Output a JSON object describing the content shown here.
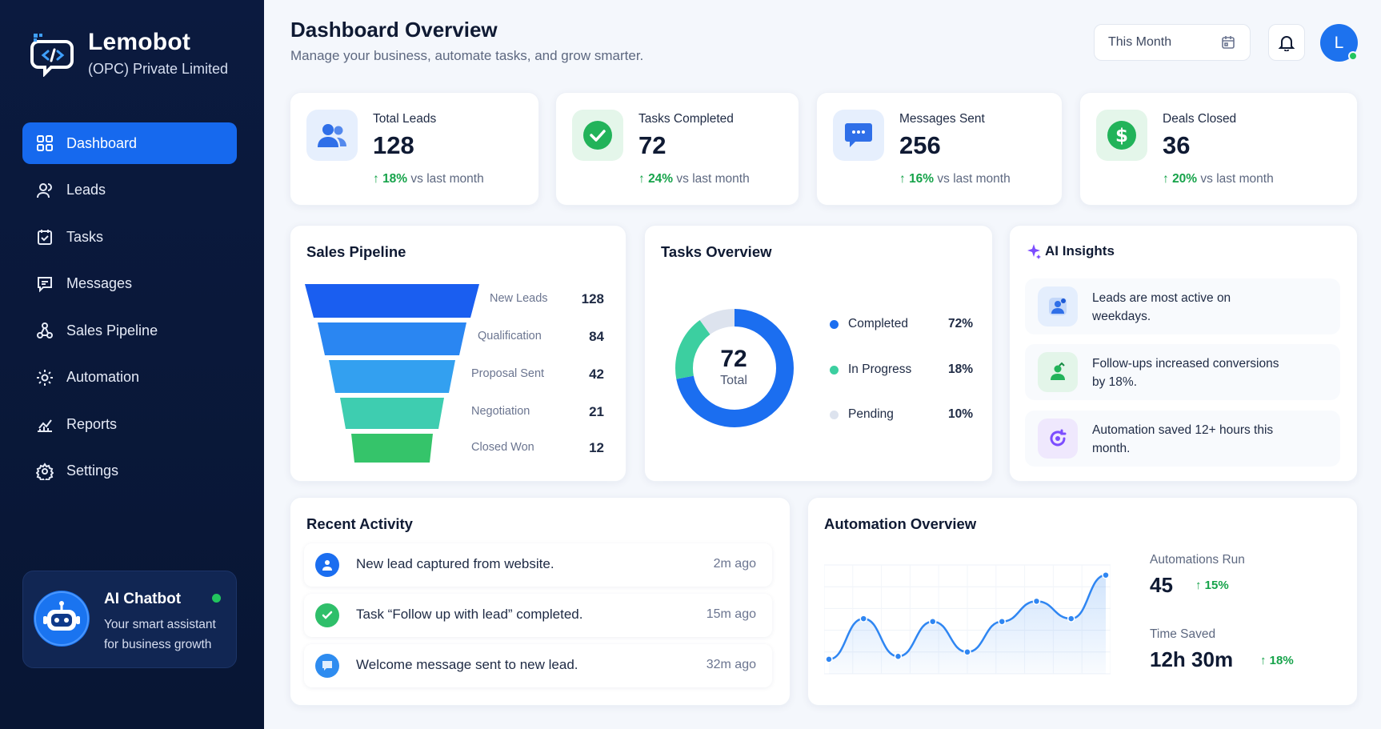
{
  "brand": {
    "name": "Lemobot",
    "subtitle": "(OPC) Private Limited"
  },
  "nav": [
    {
      "label": "Dashboard",
      "icon": "dashboard-icon",
      "active": true
    },
    {
      "label": "Leads",
      "icon": "users-icon"
    },
    {
      "label": "Tasks",
      "icon": "clipboard-check-icon"
    },
    {
      "label": "Messages",
      "icon": "message-icon"
    },
    {
      "label": "Sales Pipeline",
      "icon": "pipeline-icon"
    },
    {
      "label": "Automation",
      "icon": "automation-icon"
    },
    {
      "label": "Reports",
      "icon": "reports-icon"
    },
    {
      "label": "Settings",
      "icon": "settings-icon"
    }
  ],
  "chatbot": {
    "title": "AI Chatbot",
    "description": "Your smart assistant for business growth"
  },
  "header": {
    "title": "Dashboard Overview",
    "subtitle": "Manage your business, automate tasks, and grow smarter.",
    "period": "This Month",
    "avatar_initial": "L"
  },
  "stats": [
    {
      "label": "Total Leads",
      "value": "128",
      "delta": "18%",
      "delta_suffix": "vs last month"
    },
    {
      "label": "Tasks Completed",
      "value": "72",
      "delta": "24%",
      "delta_suffix": "vs last month"
    },
    {
      "label": "Messages Sent",
      "value": "256",
      "delta": "16%",
      "delta_suffix": "vs last month"
    },
    {
      "label": "Deals Closed",
      "value": "36",
      "delta": "20%",
      "delta_suffix": "vs last month"
    }
  ],
  "pipeline": {
    "title": "Sales Pipeline",
    "stages": [
      {
        "label": "New Leads",
        "value": 128,
        "color": "#1a5ef0"
      },
      {
        "label": "Qualification",
        "value": 84,
        "color": "#2a86f2"
      },
      {
        "label": "Proposal Sent",
        "value": 42,
        "color": "#33a0f0"
      },
      {
        "label": "Negotiation",
        "value": 21,
        "color": "#3ecdb0"
      },
      {
        "label": "Closed Won",
        "value": 12,
        "color": "#35c46a"
      }
    ]
  },
  "tasks_overview": {
    "title": "Tasks Overview",
    "total": "72",
    "total_label": "Total",
    "segments": [
      {
        "label": "Completed",
        "percent": 72,
        "display": "72%",
        "color": "#1b6ef0"
      },
      {
        "label": "In Progress",
        "percent": 18,
        "display": "18%",
        "color": "#3ccfa0"
      },
      {
        "label": "Pending",
        "percent": 10,
        "display": "10%",
        "color": "#dde3ee"
      }
    ]
  },
  "insights": {
    "title": "AI Insights",
    "items": [
      {
        "text": "Leads are most active on weekdays.",
        "icon": "user-pin-icon"
      },
      {
        "text": "Follow-ups increased conversions by 18%.",
        "icon": "user-chart-icon"
      },
      {
        "text": "Automation saved 12+ hours this month.",
        "icon": "refresh-icon"
      }
    ]
  },
  "recent_activity": {
    "title": "Recent Activity",
    "items": [
      {
        "text": "New lead captured from website.",
        "time": "2m ago",
        "icon": "user-icon"
      },
      {
        "text": "Task “Follow up with lead” completed.",
        "time": "15m ago",
        "icon": "check-icon"
      },
      {
        "text": "Welcome message sent to new lead.",
        "time": "32m ago",
        "icon": "chat-icon"
      }
    ]
  },
  "automation": {
    "title": "Automation Overview",
    "runs_label": "Automations Run",
    "runs_value": "45",
    "runs_delta": "15%",
    "time_label": "Time Saved",
    "time_value": "12h 30m",
    "time_delta": "18%",
    "chart_data": {
      "type": "area",
      "values": [
        10,
        38,
        12,
        36,
        15,
        36,
        50,
        38,
        68
      ]
    }
  }
}
